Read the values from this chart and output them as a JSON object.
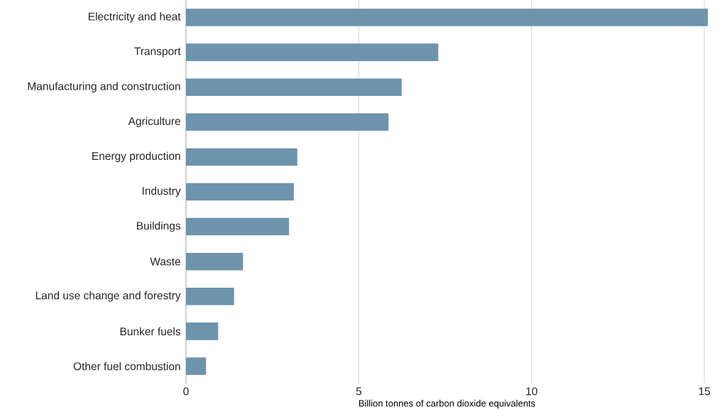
{
  "chart_data": {
    "type": "bar",
    "orientation": "horizontal",
    "xlabel": "Billion tonnes of carbon dioxide equivalents",
    "categories": [
      "Electricity and heat",
      "Transport",
      "Manufacturing and construction",
      "Agriculture",
      "Energy production",
      "Industry",
      "Buildings",
      "Waste",
      "Land use change and forestry",
      "Bunker fuels",
      "Other fuel combustion"
    ],
    "values": [
      15.1,
      7.3,
      6.24,
      5.86,
      3.22,
      3.12,
      2.98,
      1.65,
      1.39,
      0.93,
      0.58
    ],
    "color": "#6d93ad",
    "xlim": [
      0,
      15.1
    ],
    "xticks": [
      0,
      5,
      10,
      15
    ],
    "grid": "x"
  }
}
